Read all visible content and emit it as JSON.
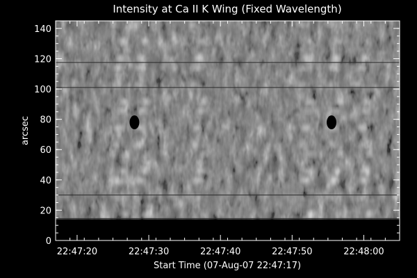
{
  "chart_data": {
    "type": "heatmap",
    "title": "Intensity at Ca II K Wing (Fixed Wavelength)",
    "xlabel": "Start Time (07-Aug-07 22:47:17)",
    "ylabel": "arcsec",
    "x_ticks": [
      "22:47:20",
      "22:47:30",
      "22:47:40",
      "22:47:50",
      "22:48:00"
    ],
    "x_tick_seconds": [
      3,
      13,
      23,
      33,
      43
    ],
    "xlim_seconds": [
      0,
      48
    ],
    "y_ticks": [
      0,
      20,
      40,
      60,
      80,
      100,
      120,
      140
    ],
    "ylim": [
      0,
      145
    ],
    "colormap": "grayscale",
    "background": "#000000",
    "axis_color": "#ffffff",
    "data_region_ylim": [
      14,
      145
    ],
    "dark_features": [
      {
        "label": "sunspot",
        "t_seconds": 11,
        "y": 78
      },
      {
        "label": "sunspot",
        "t_seconds": 38.5,
        "y": 78
      }
    ],
    "bright_bands_t_seconds": [
      9,
      12,
      20,
      35,
      39,
      43
    ],
    "horizontal_lines_y": [
      30,
      14.5,
      117.5,
      101
    ]
  }
}
